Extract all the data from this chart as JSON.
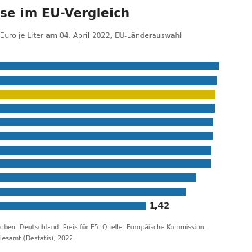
{
  "title": "se im EU-Vergleich",
  "subtitle": "Euro je Liter am 04. April 2022, EU-Länderauswahl",
  "footnote1": "oben. Deutschland: Preis für E5. Quelle: Europäische Kommission.",
  "footnote2": "lesamt (Destatis), 2022",
  "values": [
    2.12,
    2.1,
    2.09,
    2.08,
    2.07,
    2.06,
    2.05,
    2.04,
    1.9,
    1.8,
    1.42
  ],
  "highlight_index": 2,
  "bar_color": "#1a6fa8",
  "highlight_color": "#d4b800",
  "value_label": "1,42",
  "value_label_index": 10,
  "background": "#ffffff",
  "text_color": "#222222",
  "title_fontsize": 13,
  "subtitle_fontsize": 7.5,
  "footnote_fontsize": 6.5,
  "bar_height": 0.62,
  "xlim": [
    0,
    2.15
  ],
  "n_bars": 11
}
